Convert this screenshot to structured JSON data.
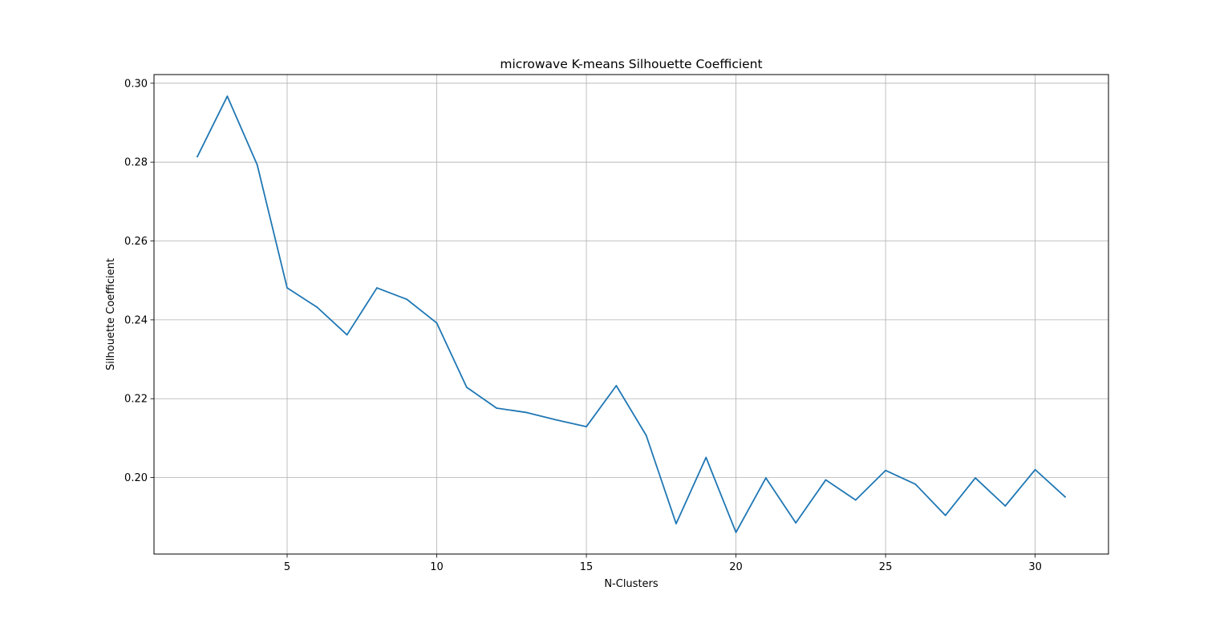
{
  "chart_data": {
    "type": "line",
    "title": "microwave K-means Silhouette Coefficient",
    "xlabel": "N-Clusters",
    "ylabel": "Silhouette Coefficient",
    "xlim": [
      0.55,
      32.45
    ],
    "ylim": [
      0.1806,
      0.3022
    ],
    "xticks": [
      5,
      10,
      15,
      20,
      25,
      30
    ],
    "yticks": [
      0.2,
      0.22,
      0.24,
      0.26,
      0.28,
      0.3
    ],
    "xtick_labels": [
      "5",
      "10",
      "15",
      "20",
      "25",
      "30"
    ],
    "ytick_labels": [
      "0.20",
      "0.22",
      "0.24",
      "0.26",
      "0.28",
      "0.30"
    ],
    "grid": true,
    "line_color": "#1f77b4",
    "series": [
      {
        "x": [
          2,
          3,
          4,
          5,
          6,
          7,
          8,
          9,
          10,
          11,
          12,
          13,
          14,
          15,
          16,
          17,
          18,
          19,
          20,
          21,
          22,
          23,
          24,
          25,
          26,
          27,
          28,
          29,
          30,
          31
        ],
        "values": [
          0.2814,
          0.2967,
          0.2793,
          0.2481,
          0.2432,
          0.2362,
          0.2481,
          0.2452,
          0.2392,
          0.2229,
          0.2176,
          0.2165,
          0.2146,
          0.2129,
          0.2233,
          0.2107,
          0.1883,
          0.2051,
          0.1861,
          0.1999,
          0.1885,
          0.1994,
          0.1943,
          0.2018,
          0.1983,
          0.1904,
          0.1999,
          0.1928,
          0.202,
          0.1951
        ]
      }
    ]
  }
}
